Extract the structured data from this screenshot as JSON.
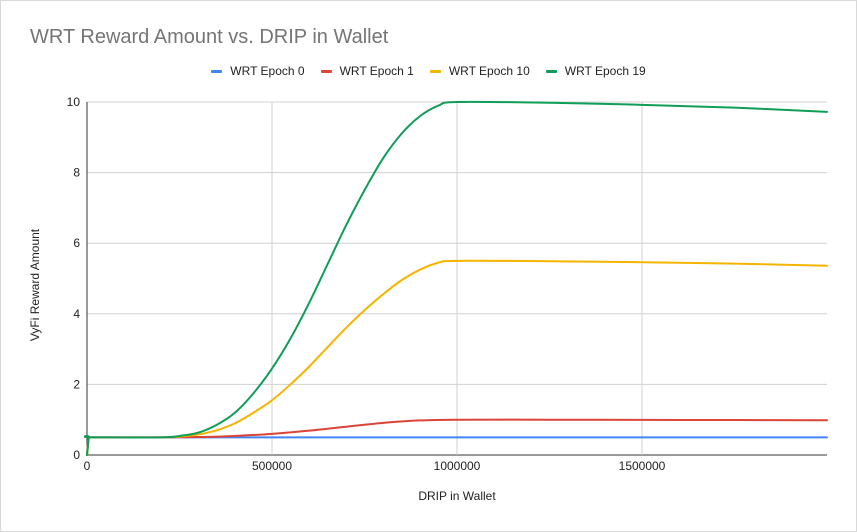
{
  "chart_data": {
    "type": "line",
    "title": "WRT Reward Amount vs. DRIP in Wallet",
    "xlabel": "DRIP in Wallet",
    "ylabel": "VyFi Reward Amount",
    "xlim": [
      0,
      2000000
    ],
    "ylim": [
      0,
      10
    ],
    "x_ticks": [
      0,
      500000,
      1000000,
      1500000
    ],
    "y_ticks": [
      0,
      2,
      4,
      6,
      8,
      10
    ],
    "grid": true,
    "legend_position": "top",
    "series": [
      {
        "name": "WRT Epoch 0",
        "color": "#4285F4",
        "x": [
          0,
          5000,
          10000,
          200000,
          500000,
          1000000,
          1500000,
          2000000
        ],
        "y": [
          0,
          0.5,
          0.5,
          0.5,
          0.5,
          0.5,
          0.5,
          0.5
        ]
      },
      {
        "name": "WRT Epoch 1",
        "color": "#DB4437",
        "x": [
          0,
          5000,
          10000,
          200000,
          300000,
          400000,
          500000,
          600000,
          700000,
          800000,
          900000,
          1000000,
          1250000,
          1500000,
          1750000,
          2000000
        ],
        "y": [
          0,
          0.5,
          0.5,
          0.5,
          0.51,
          0.54,
          0.6,
          0.69,
          0.8,
          0.91,
          0.98,
          1.0,
          1.0,
          0.995,
          0.99,
          0.985
        ]
      },
      {
        "name": "WRT Epoch 10",
        "color": "#F4B400",
        "x": [
          0,
          5000,
          10000,
          200000,
          250000,
          300000,
          350000,
          400000,
          450000,
          500000,
          550000,
          600000,
          650000,
          700000,
          750000,
          800000,
          850000,
          900000,
          950000,
          1000000,
          1250000,
          1500000,
          1750000,
          2000000
        ],
        "y": [
          0,
          0.5,
          0.5,
          0.5,
          0.52,
          0.58,
          0.7,
          0.9,
          1.2,
          1.55,
          2.0,
          2.5,
          3.05,
          3.6,
          4.1,
          4.55,
          4.95,
          5.25,
          5.45,
          5.5,
          5.49,
          5.46,
          5.42,
          5.36
        ]
      },
      {
        "name": "WRT Epoch 19",
        "color": "#0F9D58",
        "x": [
          0,
          5000,
          10000,
          200000,
          250000,
          300000,
          350000,
          400000,
          450000,
          500000,
          550000,
          600000,
          650000,
          700000,
          750000,
          800000,
          850000,
          900000,
          950000,
          1000000,
          1250000,
          1500000,
          1750000,
          2000000
        ],
        "y": [
          0,
          0.5,
          0.5,
          0.5,
          0.54,
          0.63,
          0.85,
          1.2,
          1.75,
          2.45,
          3.3,
          4.3,
          5.4,
          6.5,
          7.5,
          8.4,
          9.1,
          9.6,
          9.9,
          10.0,
          9.98,
          9.92,
          9.84,
          9.72
        ]
      }
    ]
  }
}
